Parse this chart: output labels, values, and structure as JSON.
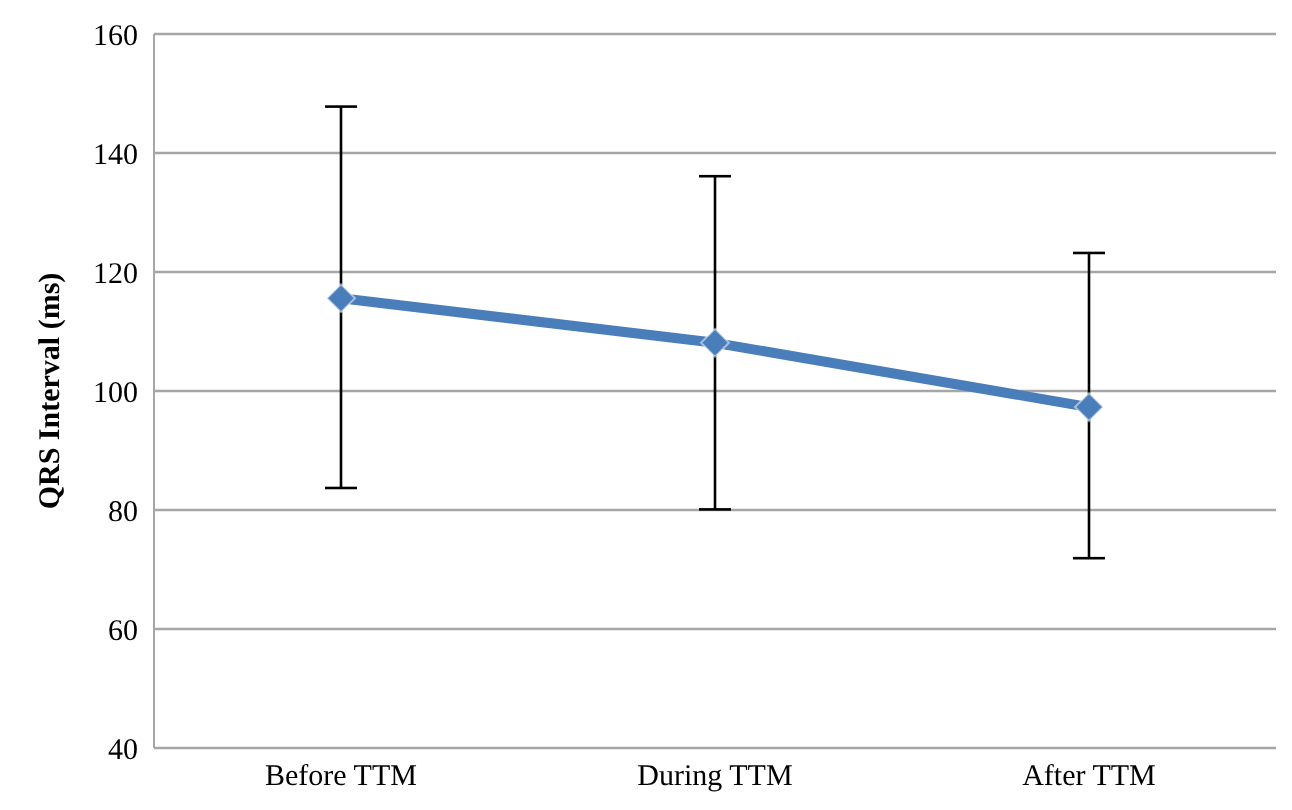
{
  "chart_data": {
    "type": "line",
    "ylabel": "QRS Interval (ms)",
    "categories": [
      "Before TTM",
      "During TTM",
      "After TTM"
    ],
    "series": [
      {
        "color": "#4a7ebb",
        "values": [
          115.6,
          108.1,
          97.3
        ],
        "errors": [
          [
            83.7,
            147.8
          ],
          [
            80.1,
            136.1
          ],
          [
            71.9,
            123.2
          ]
        ]
      }
    ],
    "ylim": [
      40,
      160
    ],
    "yticks": [
      40,
      60,
      80,
      100,
      120,
      140,
      160
    ],
    "grid": "y",
    "marker": "diamond",
    "line_style": "solid"
  }
}
